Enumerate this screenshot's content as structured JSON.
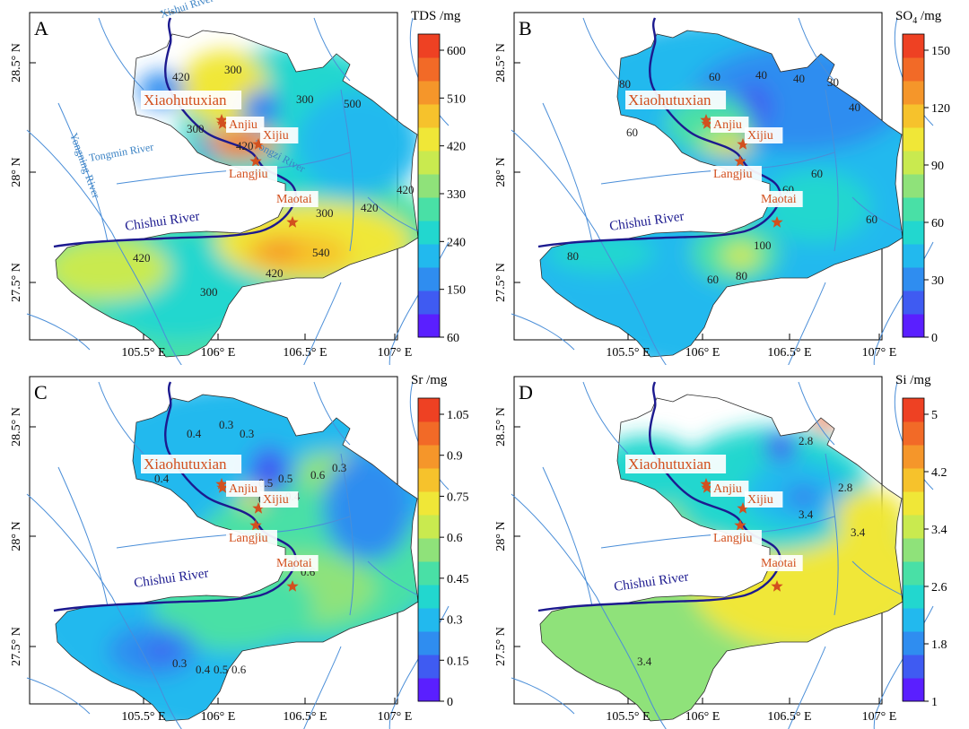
{
  "panels": [
    {
      "letter": "A",
      "unit_label": "TDS /mg",
      "ticks": [
        "600",
        "510",
        "420",
        "330",
        "240",
        "150",
        "60"
      ],
      "lat_ticks": [
        "28.5° N",
        "28° N",
        "27.5° N"
      ],
      "lon_ticks": [
        "105.5° E",
        "106° E",
        "106.5° E",
        "107° E"
      ],
      "contours": [
        "420",
        "300",
        "300",
        "300",
        "500",
        "300",
        "420",
        "420",
        "540",
        "420",
        "420",
        "300",
        "420"
      ],
      "extra_rivers": [
        "Xishui River",
        "Yongning River",
        "Tongmin River",
        "Tongzi River"
      ]
    },
    {
      "letter": "B",
      "unit_label": "SO",
      "unit_sub": "4",
      "unit_rest": " /mg",
      "ticks": [
        "150",
        "120",
        "90",
        "60",
        "30",
        "0"
      ],
      "lat_ticks": [
        "28.5° N",
        "28° N",
        "27.5° N"
      ],
      "lon_ticks": [
        "105.5° E",
        "106° E",
        "106.5° E",
        "107° E"
      ],
      "contours": [
        "80",
        "60",
        "40",
        "40",
        "30",
        "40",
        "60",
        "60",
        "60",
        "60",
        "80",
        "100",
        "60",
        "80"
      ],
      "extra_rivers": []
    },
    {
      "letter": "C",
      "unit_label": "Sr /mg",
      "ticks": [
        "1.05",
        "0.9",
        "0.75",
        "0.6",
        "0.45",
        "0.3",
        "0.15",
        "0"
      ],
      "lat_ticks": [
        "28.5° N",
        "28° N",
        "27.5° N"
      ],
      "lon_ticks": [
        "105.5° E",
        "106° E",
        "106.5° E",
        "107° E"
      ],
      "contours": [
        "0.4",
        "0.3",
        "0.3",
        "0.5",
        "0.4",
        "0.5",
        "0.6",
        "0.3",
        "0.5",
        "0.4",
        "0.6",
        "0.3",
        "0.4",
        "0.5",
        "0.6"
      ],
      "extra_rivers": []
    },
    {
      "letter": "D",
      "unit_label": "Si /mg",
      "ticks": [
        "5",
        "4.2",
        "3.4",
        "2.6",
        "1.8",
        "1"
      ],
      "lat_ticks": [
        "28.5° N",
        "28° N",
        "27.5° N"
      ],
      "lon_ticks": [
        "105.5° E",
        "106° E",
        "106.5° E",
        "107° E"
      ],
      "contours": [
        "2.8",
        "2.8",
        "3.4",
        "3.4",
        "3.4"
      ],
      "extra_rivers": []
    }
  ],
  "towns": [
    "Xiaohutuxian",
    "Anjiu",
    "Xijiu",
    "Langjiu",
    "Maotai"
  ],
  "main_river": "Chishui River",
  "colors": {
    "scale": [
      "#5a1fff",
      "#3f5bf2",
      "#2f8df0",
      "#22b9ee",
      "#22d7cf",
      "#49e0a6",
      "#8fe27a",
      "#c9ea4f",
      "#f0e737",
      "#f6c22c",
      "#f5962a",
      "#f26a27",
      "#ee4123"
    ],
    "river_main": "#1c1a8f",
    "river_other": "#4a8ed8",
    "town": "#d2501e"
  }
}
